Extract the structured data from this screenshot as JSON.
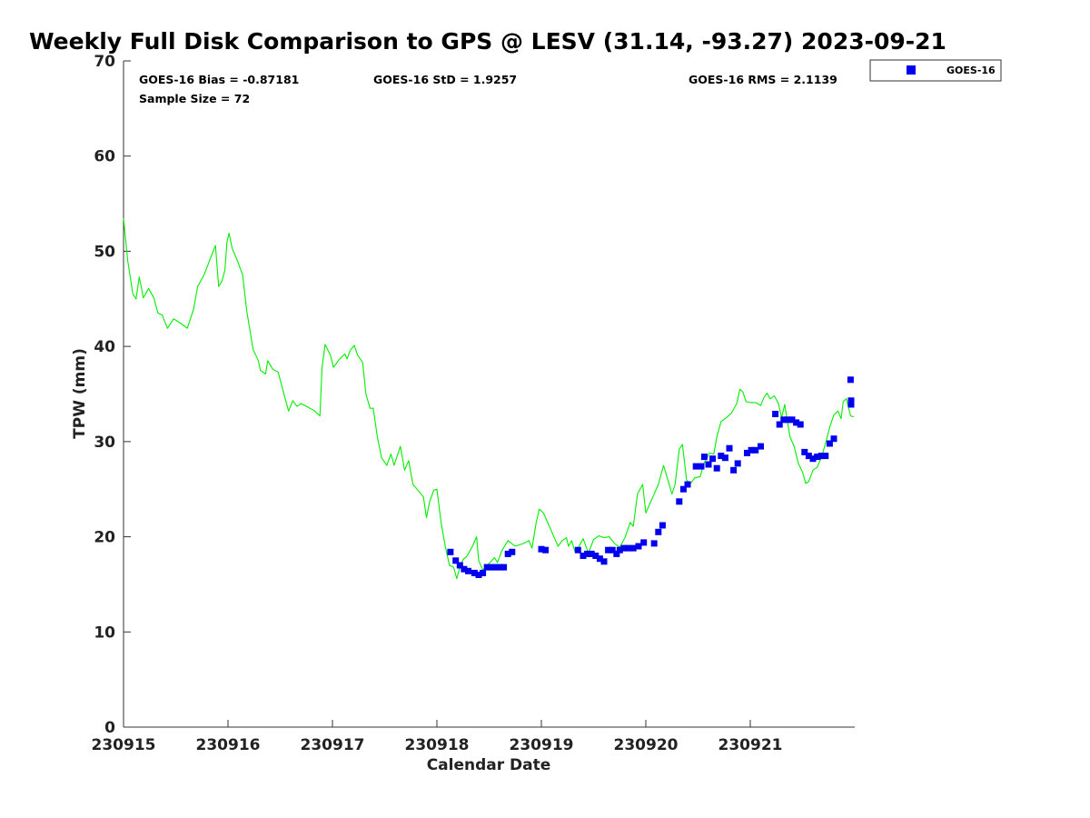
{
  "chart_data": {
    "type": "scatter",
    "title": "Weekly Full Disk Comparison to GPS @ LESV (31.14, -93.27) 2023-09-21",
    "xlabel": "Calendar Date",
    "ylabel": "TPW (mm)",
    "xlim": [
      0,
      7
    ],
    "ylim": [
      0,
      70
    ],
    "yticks": [
      0,
      10,
      20,
      30,
      40,
      50,
      60,
      70
    ],
    "xticks": [
      0,
      1,
      2,
      3,
      4,
      5,
      6
    ],
    "xticklabels": [
      "230915",
      "230916",
      "230917",
      "230918",
      "230919",
      "230920",
      "230921"
    ],
    "x_unit": "days since 230915",
    "legend": {
      "placement": "outside-top-right",
      "entries": [
        "GOES-16"
      ]
    },
    "stats": {
      "bias": "GOES-16 Bias = -0.87181",
      "std": "GOES-16 StD = 1.9257",
      "rms": "GOES-16 RMS = 2.1139",
      "sample": "Sample Size = 72"
    },
    "colors": {
      "gps_line": "#00ee00",
      "goes_marker": "#0000ee"
    },
    "series": [
      {
        "name": "GPS",
        "kind": "line",
        "points": [
          [
            0.0,
            53.5
          ],
          [
            0.04,
            49
          ],
          [
            0.09,
            45.5
          ],
          [
            0.12,
            45
          ],
          [
            0.15,
            47.3
          ],
          [
            0.19,
            45.1
          ],
          [
            0.24,
            46.1
          ],
          [
            0.29,
            45.1
          ],
          [
            0.33,
            43.5
          ],
          [
            0.37,
            43.3
          ],
          [
            0.42,
            41.9
          ],
          [
            0.48,
            42.9
          ],
          [
            0.55,
            42.4
          ],
          [
            0.61,
            41.9
          ],
          [
            0.67,
            43.9
          ],
          [
            0.71,
            46.3
          ],
          [
            0.77,
            47.5
          ],
          [
            0.83,
            49.2
          ],
          [
            0.88,
            50.6
          ],
          [
            0.91,
            46.3
          ],
          [
            0.94,
            46.8
          ],
          [
            0.97,
            48
          ],
          [
            0.99,
            51
          ],
          [
            1.01,
            51.9
          ],
          [
            1.04,
            50.3
          ],
          [
            1.09,
            49
          ],
          [
            1.14,
            47.5
          ],
          [
            1.18,
            43.7
          ],
          [
            1.24,
            39.7
          ],
          [
            1.29,
            38.5
          ],
          [
            1.31,
            37.5
          ],
          [
            1.36,
            37.1
          ],
          [
            1.38,
            38.5
          ],
          [
            1.43,
            37.6
          ],
          [
            1.48,
            37.3
          ],
          [
            1.53,
            35.2
          ],
          [
            1.58,
            33.2
          ],
          [
            1.62,
            34.3
          ],
          [
            1.66,
            33.7
          ],
          [
            1.7,
            34
          ],
          [
            1.75,
            33.7
          ],
          [
            1.82,
            33.3
          ],
          [
            1.88,
            32.7
          ],
          [
            1.9,
            37.7
          ],
          [
            1.93,
            40.2
          ],
          [
            1.98,
            39.1
          ],
          [
            2.01,
            37.8
          ],
          [
            2.07,
            38.7
          ],
          [
            2.12,
            39.2
          ],
          [
            2.14,
            38.7
          ],
          [
            2.17,
            39.6
          ],
          [
            2.21,
            40.1
          ],
          [
            2.24,
            39.1
          ],
          [
            2.29,
            38.3
          ],
          [
            2.32,
            35
          ],
          [
            2.36,
            33.5
          ],
          [
            2.39,
            33.5
          ],
          [
            2.43,
            30.5
          ],
          [
            2.47,
            28.3
          ],
          [
            2.52,
            27.5
          ],
          [
            2.56,
            28.7
          ],
          [
            2.59,
            27.5
          ],
          [
            2.62,
            28.5
          ],
          [
            2.65,
            29.5
          ],
          [
            2.69,
            27
          ],
          [
            2.73,
            28
          ],
          [
            2.77,
            25.5
          ],
          [
            2.81,
            25
          ],
          [
            2.87,
            24.2
          ],
          [
            2.9,
            22
          ],
          [
            2.93,
            23.7
          ],
          [
            2.97,
            24.9
          ],
          [
            3.0,
            25
          ],
          [
            3.04,
            21.5
          ],
          [
            3.08,
            19
          ],
          [
            3.12,
            17
          ],
          [
            3.16,
            16.8
          ],
          [
            3.19,
            15.6
          ],
          [
            3.22,
            16.8
          ],
          [
            3.25,
            17.6
          ],
          [
            3.29,
            18
          ],
          [
            3.34,
            19
          ],
          [
            3.38,
            20
          ],
          [
            3.4,
            17.5
          ],
          [
            3.44,
            16.5
          ],
          [
            3.5,
            17.2
          ],
          [
            3.55,
            17.8
          ],
          [
            3.58,
            17.3
          ],
          [
            3.62,
            18.5
          ],
          [
            3.68,
            19.6
          ],
          [
            3.75,
            19
          ],
          [
            3.83,
            19.3
          ],
          [
            3.88,
            19.6
          ],
          [
            3.91,
            18.8
          ],
          [
            3.95,
            21.5
          ],
          [
            3.98,
            22.9
          ],
          [
            4.02,
            22.5
          ],
          [
            4.1,
            20.5
          ],
          [
            4.16,
            19
          ],
          [
            4.2,
            19.6
          ],
          [
            4.24,
            19.9
          ],
          [
            4.26,
            19
          ],
          [
            4.29,
            19.6
          ],
          [
            4.32,
            18.5
          ],
          [
            4.35,
            18.8
          ],
          [
            4.4,
            19.8
          ],
          [
            4.45,
            18.3
          ],
          [
            4.5,
            19.7
          ],
          [
            4.55,
            20.1
          ],
          [
            4.6,
            19.9
          ],
          [
            4.65,
            20
          ],
          [
            4.7,
            19.3
          ],
          [
            4.75,
            18.9
          ],
          [
            4.8,
            19.9
          ],
          [
            4.85,
            21.5
          ],
          [
            4.88,
            21.1
          ],
          [
            4.92,
            24.5
          ],
          [
            4.97,
            25.5
          ],
          [
            5.0,
            22.5
          ],
          [
            5.06,
            24
          ],
          [
            5.12,
            25.5
          ],
          [
            5.17,
            27.5
          ],
          [
            5.21,
            26
          ],
          [
            5.25,
            24.5
          ],
          [
            5.28,
            25.5
          ],
          [
            5.32,
            29.2
          ],
          [
            5.35,
            29.7
          ],
          [
            5.39,
            26
          ],
          [
            5.42,
            25.5
          ],
          [
            5.47,
            26.2
          ],
          [
            5.52,
            26.3
          ],
          [
            5.56,
            27.8
          ],
          [
            5.61,
            28.8
          ],
          [
            5.65,
            28.7
          ],
          [
            5.68,
            30.5
          ],
          [
            5.72,
            32.1
          ],
          [
            5.77,
            32.5
          ],
          [
            5.82,
            33
          ],
          [
            5.87,
            34
          ],
          [
            5.9,
            35.5
          ],
          [
            5.93,
            35.2
          ],
          [
            5.96,
            34.2
          ],
          [
            6.0,
            34.1
          ],
          [
            6.05,
            34.1
          ],
          [
            6.1,
            33.8
          ],
          [
            6.13,
            34.6
          ],
          [
            6.16,
            35.1
          ],
          [
            6.19,
            34.5
          ],
          [
            6.23,
            34.8
          ],
          [
            6.27,
            34
          ],
          [
            6.3,
            32.5
          ],
          [
            6.33,
            33.9
          ],
          [
            6.38,
            30.5
          ],
          [
            6.42,
            29.5
          ],
          [
            6.46,
            27.7
          ],
          [
            6.5,
            26.8
          ],
          [
            6.53,
            25.6
          ],
          [
            6.56,
            25.8
          ],
          [
            6.6,
            27
          ],
          [
            6.64,
            27.3
          ],
          [
            6.68,
            28.3
          ],
          [
            6.72,
            29.8
          ],
          [
            6.76,
            31.5
          ],
          [
            6.8,
            32.8
          ],
          [
            6.84,
            33.2
          ],
          [
            6.87,
            32.4
          ],
          [
            6.89,
            34.2
          ],
          [
            6.92,
            34.5
          ],
          [
            6.96,
            32.7
          ],
          [
            6.99,
            32.6
          ]
        ]
      },
      {
        "name": "GOES-16",
        "kind": "scatter",
        "points": [
          [
            3.13,
            18.4
          ],
          [
            3.18,
            17.5
          ],
          [
            3.22,
            17
          ],
          [
            3.26,
            16.6
          ],
          [
            3.3,
            16.4
          ],
          [
            3.36,
            16.2
          ],
          [
            3.4,
            16
          ],
          [
            3.44,
            16.2
          ],
          [
            3.48,
            16.8
          ],
          [
            3.52,
            16.8
          ],
          [
            3.56,
            16.8
          ],
          [
            3.6,
            16.8
          ],
          [
            3.64,
            16.8
          ],
          [
            3.68,
            18.2
          ],
          [
            3.72,
            18.4
          ],
          [
            4.0,
            18.7
          ],
          [
            4.04,
            18.6
          ],
          [
            4.35,
            18.6
          ],
          [
            4.4,
            18
          ],
          [
            4.44,
            18.2
          ],
          [
            4.48,
            18.2
          ],
          [
            4.52,
            18
          ],
          [
            4.56,
            17.7
          ],
          [
            4.6,
            17.4
          ],
          [
            4.64,
            18.6
          ],
          [
            4.68,
            18.6
          ],
          [
            4.72,
            18.2
          ],
          [
            4.75,
            18.6
          ],
          [
            4.79,
            18.8
          ],
          [
            4.83,
            18.8
          ],
          [
            4.88,
            18.8
          ],
          [
            4.93,
            19
          ],
          [
            4.98,
            19.4
          ],
          [
            5.08,
            19.3
          ],
          [
            5.12,
            20.5
          ],
          [
            5.16,
            21.2
          ],
          [
            5.32,
            23.7
          ],
          [
            5.36,
            25
          ],
          [
            5.4,
            25.5
          ],
          [
            5.48,
            27.4
          ],
          [
            5.53,
            27.4
          ],
          [
            5.56,
            28.4
          ],
          [
            5.6,
            27.6
          ],
          [
            5.64,
            28.2
          ],
          [
            5.68,
            27.2
          ],
          [
            5.72,
            28.5
          ],
          [
            5.76,
            28.3
          ],
          [
            5.8,
            29.3
          ],
          [
            5.84,
            27
          ],
          [
            5.88,
            27.7
          ],
          [
            5.97,
            28.8
          ],
          [
            6.01,
            29.1
          ],
          [
            6.05,
            29.1
          ],
          [
            6.1,
            29.5
          ],
          [
            6.24,
            32.9
          ],
          [
            6.28,
            31.8
          ],
          [
            6.32,
            32.3
          ],
          [
            6.36,
            32.3
          ],
          [
            6.4,
            32.3
          ],
          [
            6.44,
            32
          ],
          [
            6.48,
            31.8
          ],
          [
            6.52,
            28.9
          ],
          [
            6.56,
            28.5
          ],
          [
            6.6,
            28.2
          ],
          [
            6.64,
            28.4
          ],
          [
            6.68,
            28.5
          ],
          [
            6.72,
            28.5
          ],
          [
            6.76,
            29.8
          ],
          [
            6.8,
            30.3
          ],
          [
            6.96,
            36.5
          ],
          [
            7.0,
            34.3
          ],
          [
            7.04,
            33.9
          ]
        ]
      }
    ]
  }
}
